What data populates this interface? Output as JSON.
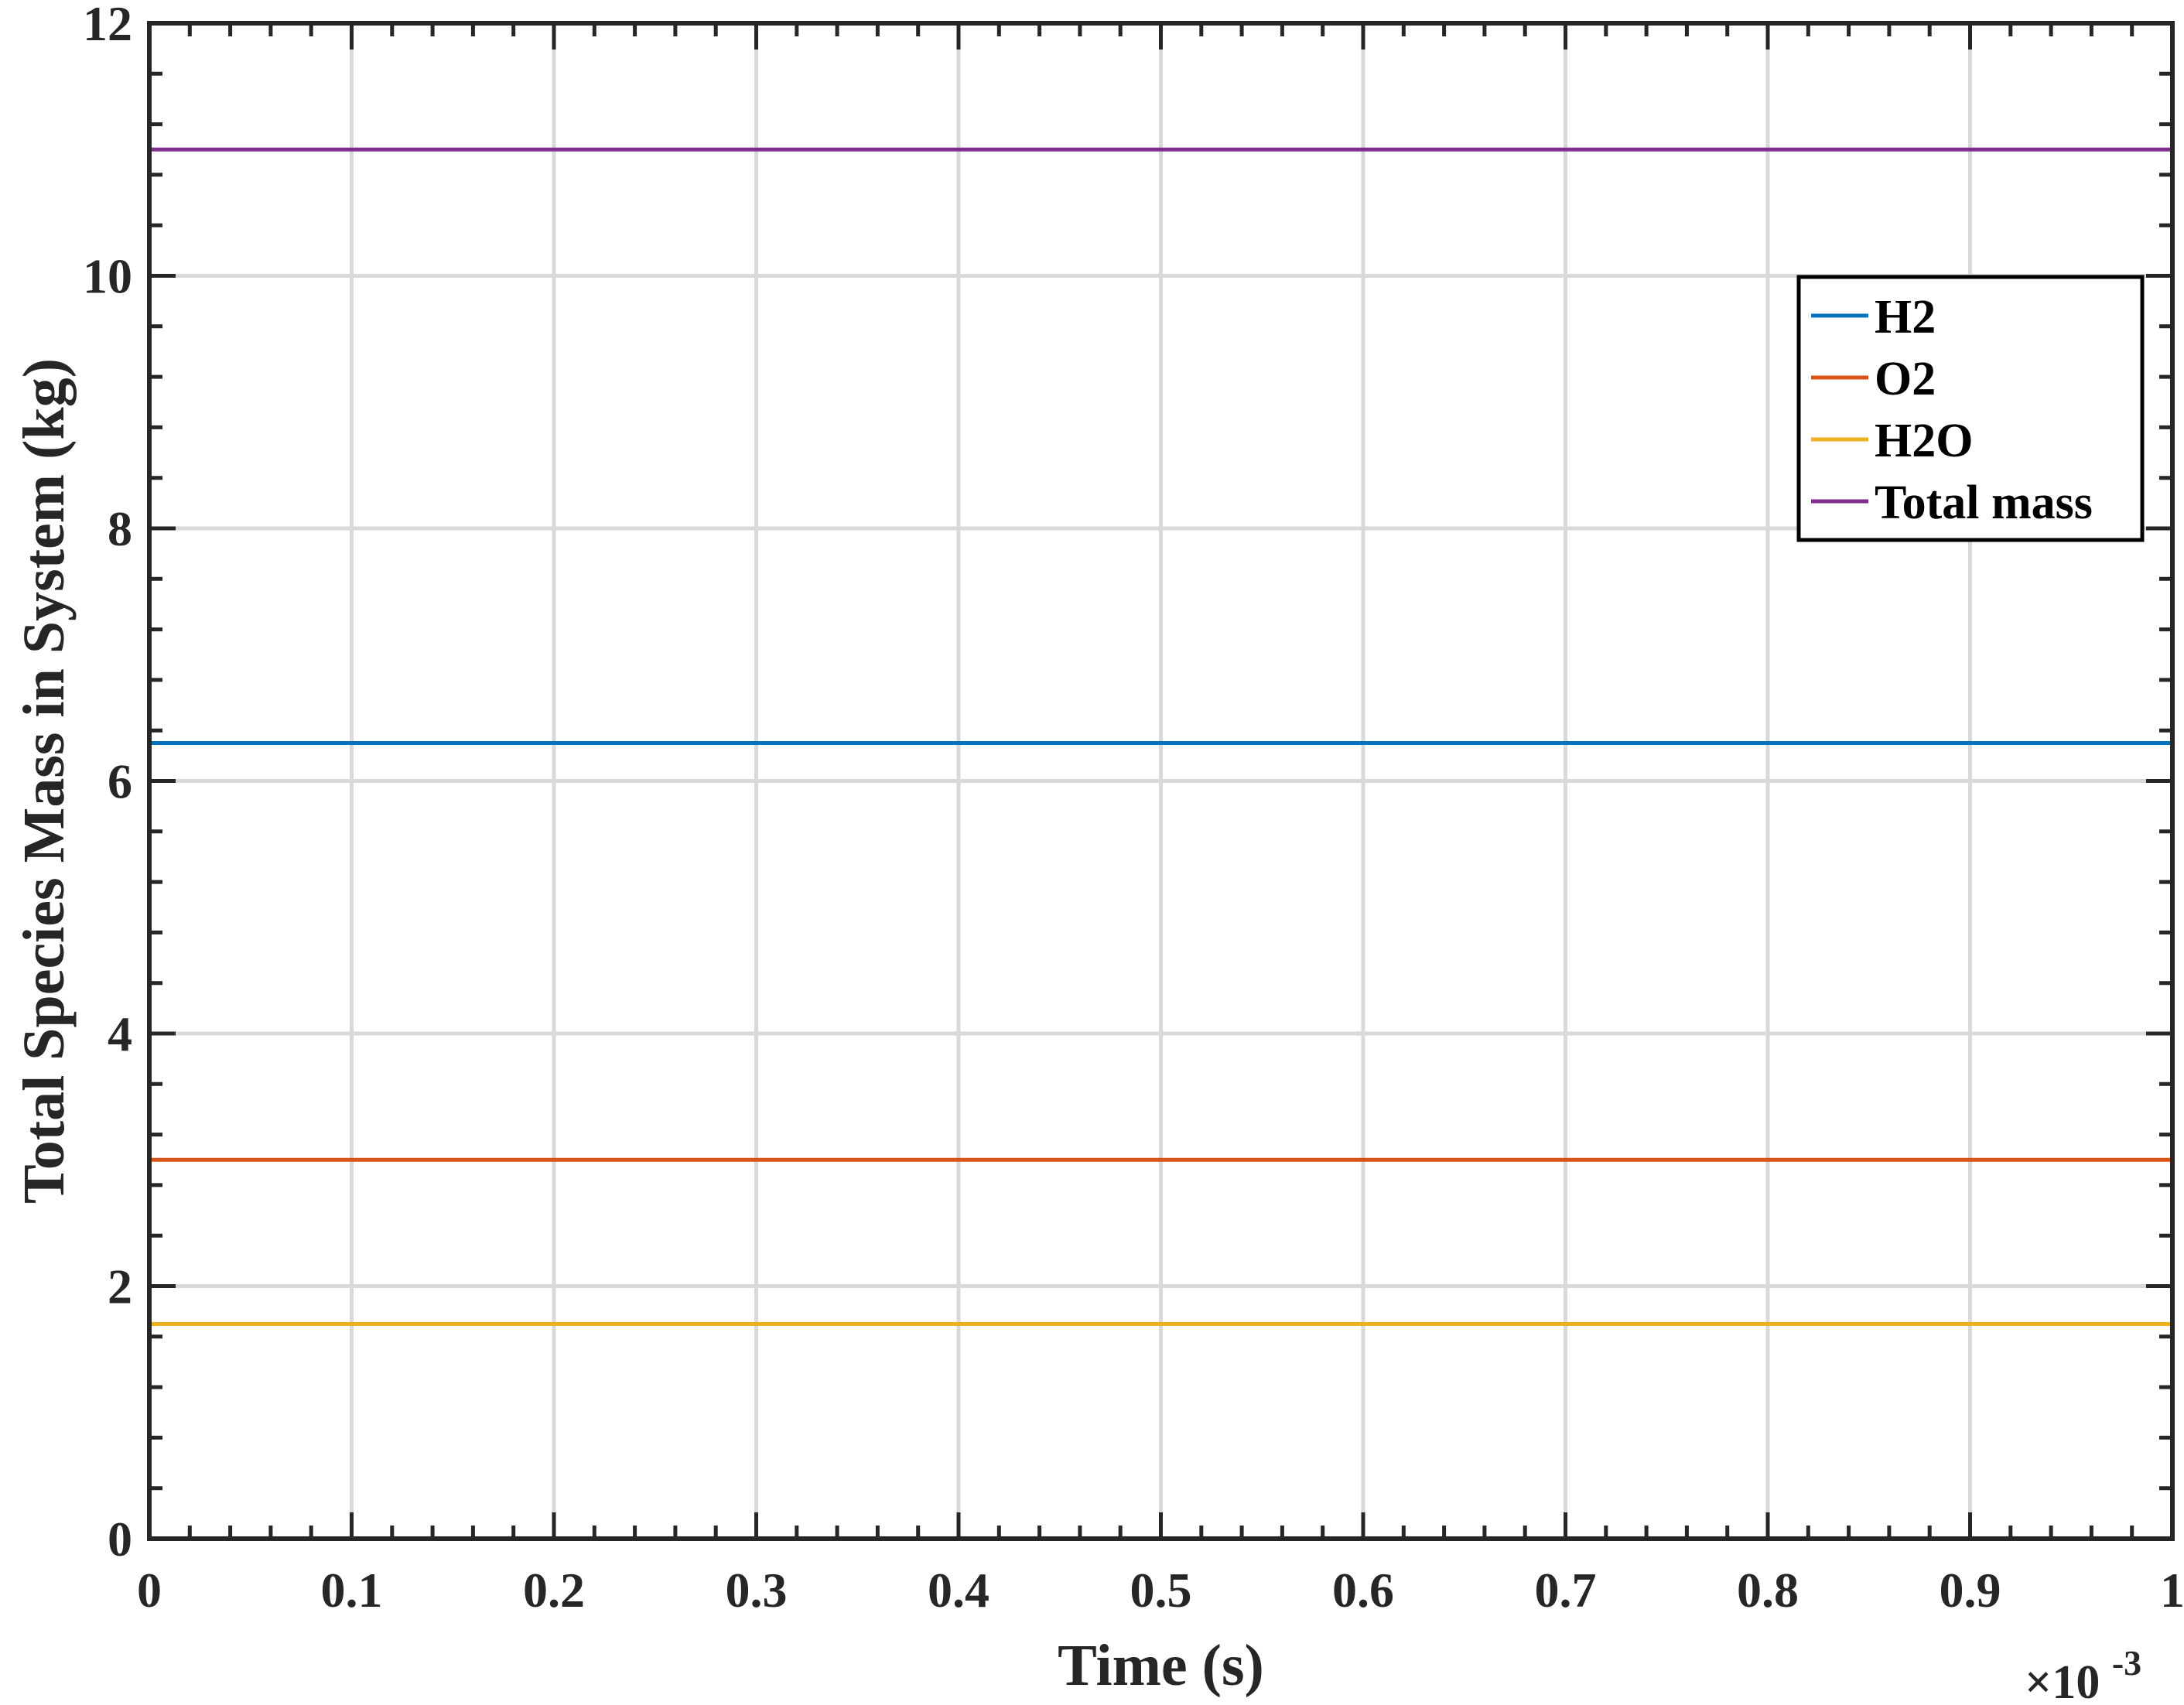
{
  "chart_data": {
    "type": "line",
    "xlabel": "Time (s)",
    "ylabel": "Total Species Mass in System (kg)",
    "x_multiplier_label": "×10",
    "x_multiplier_exponent": "-3",
    "xlim": [
      0,
      0.001
    ],
    "ylim": [
      0,
      12
    ],
    "x_ticks": [
      0,
      0.0001,
      0.0002,
      0.0003,
      0.0004,
      0.0005,
      0.0006,
      0.0007,
      0.0008,
      0.0009,
      0.001
    ],
    "x_tick_labels": [
      "0",
      "0.1",
      "0.2",
      "0.3",
      "0.4",
      "0.5",
      "0.6",
      "0.7",
      "0.8",
      "0.9",
      "1"
    ],
    "y_ticks": [
      0,
      2,
      4,
      6,
      8,
      10,
      12
    ],
    "y_tick_labels": [
      "0",
      "2",
      "4",
      "6",
      "8",
      "10",
      "12"
    ],
    "grid": true,
    "legend_position": "top-right",
    "x": [
      0,
      0.001
    ],
    "series": [
      {
        "name": "H2",
        "color": "#0072BD",
        "values": [
          6.3,
          6.3
        ]
      },
      {
        "name": "O2",
        "color": "#D95319",
        "values": [
          3.0,
          3.0
        ]
      },
      {
        "name": "H2O",
        "color": "#EDB120",
        "values": [
          1.7,
          1.7
        ]
      },
      {
        "name": "Total mass",
        "color": "#7E2F8E",
        "values": [
          11.0,
          11.0
        ]
      }
    ]
  }
}
